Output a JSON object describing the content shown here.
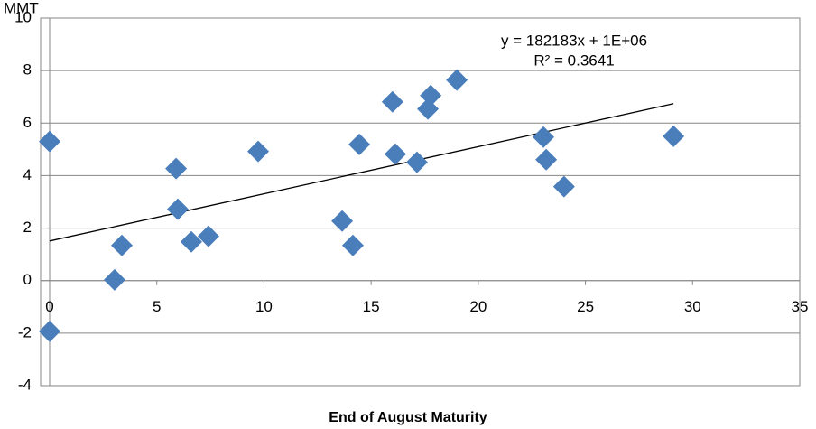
{
  "chart_data": {
    "type": "scatter",
    "x_label": "End of August Maturity",
    "y_label": "MMT",
    "annotations": [
      "y = 182183x + 1E+06",
      "R² = 0.3641"
    ],
    "color": "#4a7ebb",
    "grid": true,
    "xlim": [
      0,
      35
    ],
    "xticks": [
      0,
      5,
      10,
      15,
      20,
      25,
      30,
      35
    ],
    "ylim": [
      -4,
      10
    ],
    "yticks": [
      -4,
      -2,
      0,
      2,
      4,
      6,
      8,
      10
    ],
    "x": [
      0,
      0,
      3.03,
      3.37,
      5.9,
      5.98,
      6.61,
      7.41,
      9.73,
      13.65,
      14.15,
      14.45,
      16.0,
      16.13,
      17.14,
      17.78,
      17.65,
      19.0,
      23.04,
      23.17,
      24.0,
      29.11
    ],
    "values": [
      5.3,
      -1.93,
      0.03,
      1.34,
      4.27,
      2.72,
      1.48,
      1.69,
      4.92,
      2.27,
      1.34,
      5.19,
      6.81,
      4.82,
      4.51,
      7.05,
      6.54,
      7.64,
      5.47,
      4.61,
      3.58,
      5.5
    ],
    "trendline": {
      "x": [
        0,
        29.11
      ],
      "values": [
        1.51,
        6.74
      ],
      "color": "#000000"
    }
  }
}
